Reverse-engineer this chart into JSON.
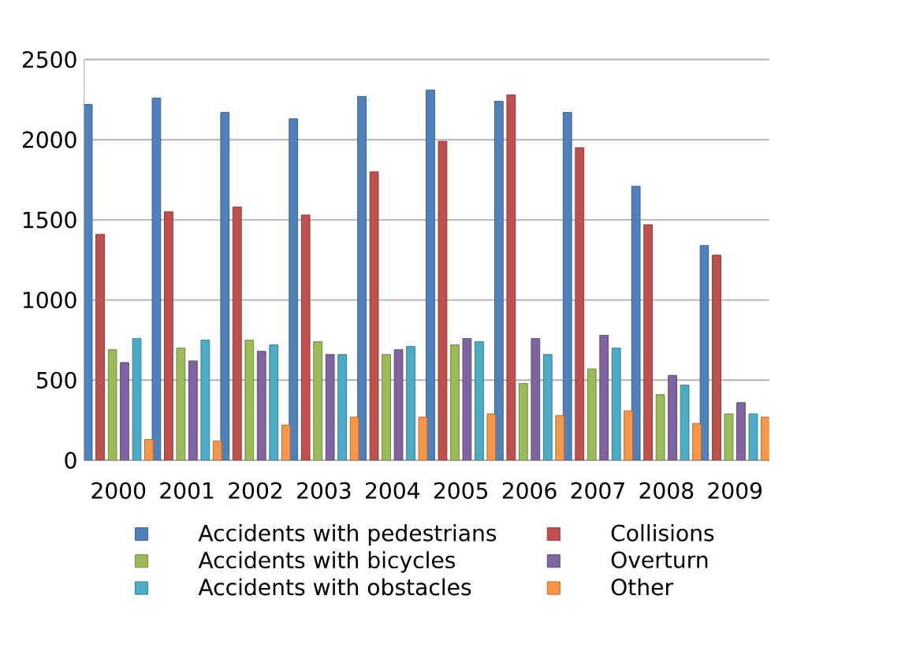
{
  "chart_data": {
    "type": "bar",
    "categories": [
      "2000",
      "2001",
      "2002",
      "2003",
      "2004",
      "2005",
      "2006",
      "2007",
      "2008",
      "2009"
    ],
    "series": [
      {
        "name": "Accidents with pedestrians",
        "color": "#4f81bd",
        "values": [
          2220,
          2260,
          2170,
          2130,
          2270,
          2310,
          2240,
          2170,
          1710,
          1340
        ]
      },
      {
        "name": "Collisions",
        "color": "#c0504d",
        "values": [
          1410,
          1550,
          1580,
          1530,
          1800,
          1990,
          2280,
          1950,
          1470,
          1280
        ]
      },
      {
        "name": "Accidents with bicycles",
        "color": "#9bbb59",
        "values": [
          690,
          700,
          750,
          740,
          660,
          720,
          480,
          570,
          410,
          290
        ]
      },
      {
        "name": "Overturn",
        "color": "#8064a2",
        "values": [
          610,
          620,
          680,
          660,
          690,
          760,
          760,
          780,
          530,
          360
        ]
      },
      {
        "name": "Accidents with obstacles",
        "color": "#4bacc6",
        "values": [
          760,
          750,
          720,
          660,
          710,
          740,
          660,
          700,
          470,
          290
        ]
      },
      {
        "name": "Other",
        "color": "#f79646",
        "values": [
          130,
          120,
          220,
          270,
          270,
          290,
          280,
          310,
          230,
          270
        ]
      }
    ],
    "ylim": [
      0,
      2500
    ],
    "yticks": [
      0,
      500,
      1000,
      1500,
      2000,
      2500
    ],
    "grid": "y",
    "legend": "bottom"
  }
}
